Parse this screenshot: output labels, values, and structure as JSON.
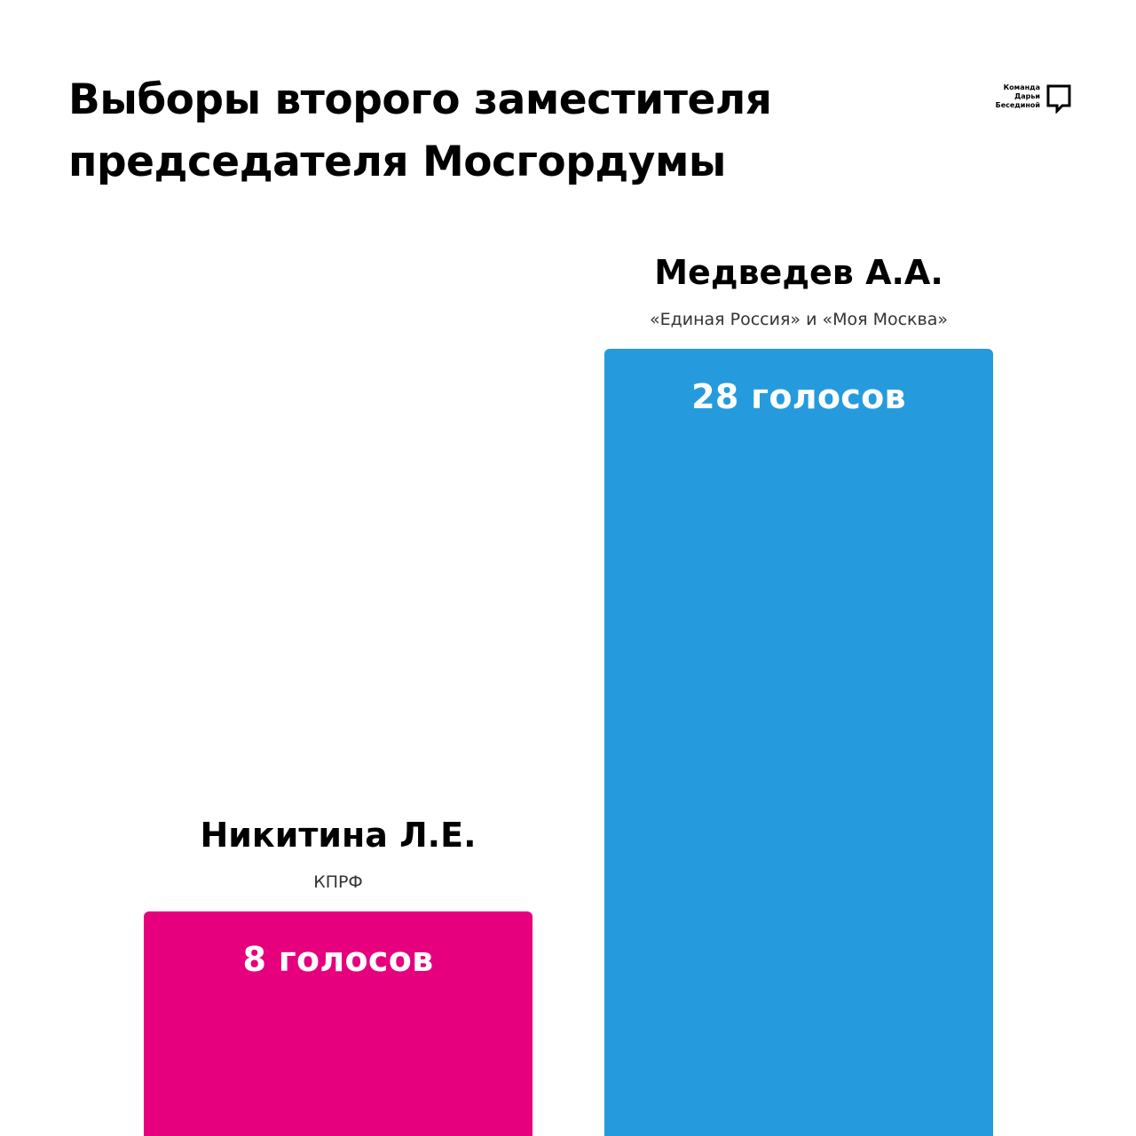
{
  "title": "Выборы второго заместителя председателя Мосгордумы",
  "logo": {
    "lines": [
      "Команда",
      "Дарьи",
      "Бесединой"
    ],
    "icon": "speech-bubble-icon"
  },
  "chart_data": {
    "type": "bar",
    "title": "Выборы второго заместителя председателя Мосгордумы",
    "categories": [
      "Никитина Л.Е.",
      "Медведев А.А."
    ],
    "parties": [
      "КПРФ",
      "«Единая Россия» и «Моя Москва»"
    ],
    "values": [
      8,
      28
    ],
    "value_labels": [
      "8 голосов",
      "28 голосов"
    ],
    "colors": [
      "#e6007e",
      "#259bdd"
    ],
    "xlabel": "",
    "ylabel": "",
    "grid": false,
    "legend": "none"
  }
}
